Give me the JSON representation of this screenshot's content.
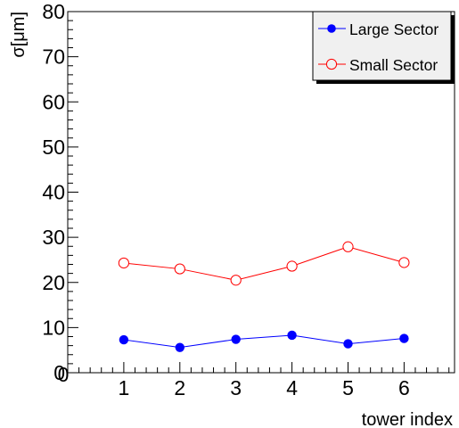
{
  "chart_data": {
    "type": "line",
    "xlabel": "tower index",
    "ylabel": "σ[μm]",
    "xlim": [
      0,
      6.9
    ],
    "ylim": [
      0,
      80
    ],
    "x_ticks": [
      1,
      2,
      3,
      4,
      5,
      6
    ],
    "y_ticks": [
      0,
      10,
      20,
      30,
      40,
      50,
      60,
      70,
      80
    ],
    "x": [
      1,
      2,
      3,
      4,
      5,
      6
    ],
    "series": [
      {
        "name": "Large Sector",
        "values": [
          7.3,
          5.6,
          7.4,
          8.3,
          6.4,
          7.6
        ],
        "color": "#0000ff",
        "marker": "filled-circle"
      },
      {
        "name": "Small Sector",
        "values": [
          24.3,
          23.0,
          20.5,
          23.6,
          27.9,
          24.4
        ],
        "color": "#ff0000",
        "marker": "open-circle"
      }
    ],
    "grid": false,
    "legend_position": "top-right"
  }
}
